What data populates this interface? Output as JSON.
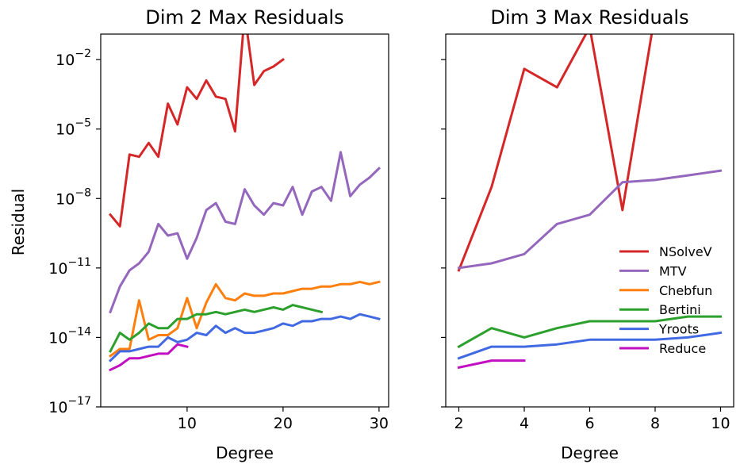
{
  "figure": {
    "ylabel": "Residual"
  },
  "chart_data": [
    {
      "type": "line",
      "title": "Dim 2 Max Residuals",
      "xlabel": "Degree",
      "ylabel": "Residual",
      "yscale": "log",
      "xlim": [
        1,
        31
      ],
      "ylim_exp": [
        -17,
        -0.9
      ],
      "xticks": [
        10,
        20,
        30
      ],
      "yticks_exp": [
        -17,
        -14,
        -11,
        -8,
        -5,
        -2
      ],
      "grid": false,
      "series": [
        {
          "name": "NSolveV",
          "color": "#d62728",
          "x": [
            2,
            3,
            4,
            5,
            6,
            7,
            8,
            9,
            10,
            11,
            12,
            13,
            14,
            15,
            16,
            17,
            18,
            19,
            20
          ],
          "log10y": [
            -8.7,
            -9.2,
            -6.1,
            -6.2,
            -5.6,
            -6.2,
            -3.9,
            -4.8,
            -3.2,
            -3.7,
            -2.9,
            -3.6,
            -3.7,
            -5.1,
            0,
            -3.1,
            -2.5,
            -2.3,
            -2.0
          ]
        },
        {
          "name": "MTV",
          "color": "#9467bd",
          "x": [
            2,
            3,
            4,
            5,
            6,
            7,
            8,
            9,
            10,
            11,
            12,
            13,
            14,
            15,
            16,
            17,
            18,
            19,
            20,
            21,
            22,
            23,
            24,
            25,
            26,
            27,
            28,
            29,
            30
          ],
          "log10y": [
            -12.9,
            -11.8,
            -11.1,
            -10.8,
            -10.3,
            -9.1,
            -9.6,
            -9.5,
            -10.6,
            -9.7,
            -8.5,
            -8.2,
            -9.0,
            -9.1,
            -7.6,
            -8.3,
            -8.7,
            -8.2,
            -8.3,
            -7.5,
            -8.7,
            -7.7,
            -7.5,
            -8.1,
            -6.0,
            -7.9,
            -7.4,
            -7.1,
            -6.7
          ]
        },
        {
          "name": "Chebfun",
          "color": "#ff7f0e",
          "x": [
            2,
            3,
            4,
            5,
            6,
            7,
            8,
            9,
            10,
            11,
            12,
            13,
            14,
            15,
            16,
            17,
            18,
            19,
            20,
            21,
            22,
            23,
            24,
            25,
            26,
            27,
            28,
            29,
            30
          ],
          "log10y": [
            -14.8,
            -14.5,
            -14.5,
            -12.4,
            -14.1,
            -13.9,
            -13.9,
            -13.6,
            -12.3,
            -13.6,
            -12.5,
            -11.7,
            -12.3,
            -12.4,
            -12.1,
            -12.2,
            -12.2,
            -12.1,
            -12.1,
            -12.0,
            -11.9,
            -11.9,
            -11.8,
            -11.8,
            -11.7,
            -11.7,
            -11.6,
            -11.7,
            -11.6
          ]
        },
        {
          "name": "Bertini",
          "color": "#2ca02c",
          "x": [
            2,
            3,
            4,
            5,
            6,
            7,
            8,
            9,
            10,
            11,
            12,
            13,
            14,
            15,
            16,
            17,
            18,
            19,
            20,
            21,
            22,
            23,
            24
          ],
          "log10y": [
            -14.6,
            -13.8,
            -14.1,
            -13.8,
            -13.4,
            -13.6,
            -13.6,
            -13.2,
            -13.2,
            -13.0,
            -13.0,
            -12.9,
            -13.0,
            -12.9,
            -12.8,
            -12.9,
            -12.8,
            -12.7,
            -12.8,
            -12.6,
            -12.7,
            -12.8,
            -12.9
          ]
        },
        {
          "name": "Yroots",
          "color": "#4169e1",
          "x": [
            2,
            3,
            4,
            5,
            6,
            7,
            8,
            9,
            10,
            11,
            12,
            13,
            14,
            15,
            16,
            17,
            18,
            19,
            20,
            21,
            22,
            23,
            24,
            25,
            26,
            27,
            28,
            29,
            30
          ],
          "log10y": [
            -15.0,
            -14.6,
            -14.6,
            -14.5,
            -14.4,
            -14.4,
            -14.0,
            -14.2,
            -14.1,
            -13.8,
            -13.9,
            -13.5,
            -13.8,
            -13.6,
            -13.8,
            -13.8,
            -13.7,
            -13.6,
            -13.4,
            -13.5,
            -13.3,
            -13.3,
            -13.2,
            -13.2,
            -13.1,
            -13.2,
            -13.0,
            -13.1,
            -13.2
          ]
        },
        {
          "name": "Reduce",
          "color": "#c20fc2",
          "x": [
            2,
            3,
            4,
            5,
            6,
            7,
            8,
            9,
            10
          ],
          "log10y": [
            -15.4,
            -15.2,
            -14.9,
            -14.9,
            -14.8,
            -14.7,
            -14.7,
            -14.3,
            -14.4
          ]
        }
      ]
    },
    {
      "type": "line",
      "title": "Dim 3 Max Residuals",
      "xlabel": "Degree",
      "yscale": "log",
      "xlim": [
        1.6,
        10.4
      ],
      "ylim_exp": [
        -17,
        -0.9
      ],
      "xticks": [
        2,
        4,
        6,
        8,
        10
      ],
      "yticks_exp": [
        -17,
        -14,
        -11,
        -8,
        -5,
        -2
      ],
      "grid": false,
      "legend": {
        "position": "lower-right"
      },
      "series": [
        {
          "name": "NSolveV",
          "color": "#d62728",
          "x": [
            2,
            3,
            4,
            5,
            6,
            7,
            8
          ],
          "log10y": [
            -11.1,
            -7.5,
            -2.4,
            -3.2,
            -0.6,
            -8.5,
            0
          ]
        },
        {
          "name": "MTV",
          "color": "#9467bd",
          "x": [
            2,
            3,
            4,
            5,
            6,
            7,
            8,
            9,
            10
          ],
          "log10y": [
            -11.0,
            -10.8,
            -10.4,
            -9.1,
            -8.7,
            -7.3,
            -7.2,
            -7.0,
            -6.8
          ]
        },
        {
          "name": "Chebfun",
          "color": "#ff7f0e",
          "x": [],
          "log10y": []
        },
        {
          "name": "Bertini",
          "color": "#2ca02c",
          "x": [
            2,
            3,
            4,
            5,
            6,
            7,
            8,
            9,
            10
          ],
          "log10y": [
            -14.4,
            -13.6,
            -14.0,
            -13.6,
            -13.3,
            -13.3,
            -13.3,
            -13.1,
            -13.1
          ]
        },
        {
          "name": "Yroots",
          "color": "#4169e1",
          "x": [
            2,
            3,
            4,
            5,
            6,
            7,
            8,
            9,
            10
          ],
          "log10y": [
            -14.9,
            -14.4,
            -14.4,
            -14.3,
            -14.1,
            -14.1,
            -14.1,
            -14.0,
            -13.8
          ]
        },
        {
          "name": "Reduce",
          "color": "#c20fc2",
          "x": [
            2,
            3,
            4
          ],
          "log10y": [
            -15.3,
            -15.0,
            -15.0
          ]
        }
      ]
    }
  ]
}
